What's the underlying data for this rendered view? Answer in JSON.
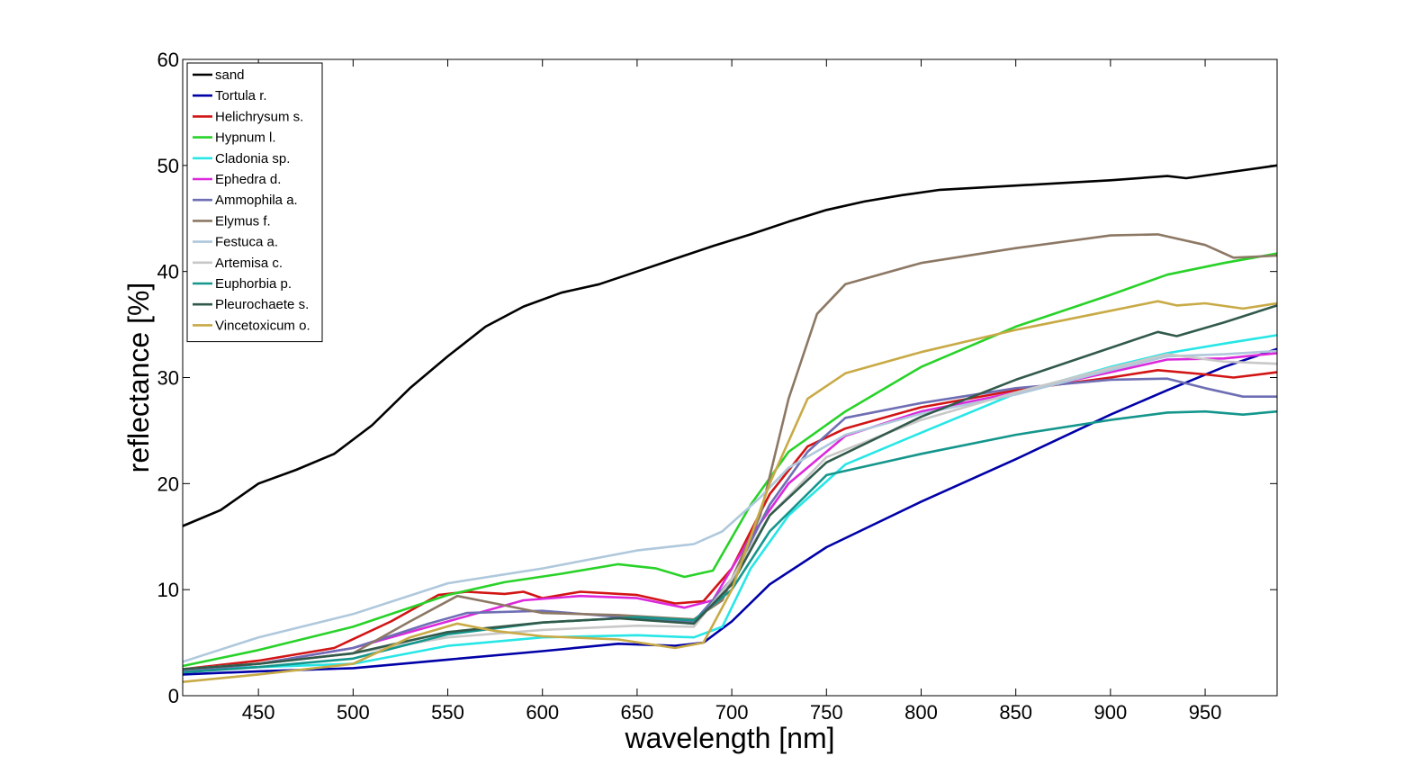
{
  "chart_data": {
    "type": "line",
    "title": "",
    "xlabel": "wavelength [nm]",
    "ylabel": "reflectance [%]",
    "xlim": [
      410,
      988
    ],
    "ylim": [
      0,
      60
    ],
    "xticks": [
      450,
      500,
      550,
      600,
      650,
      700,
      750,
      800,
      850,
      900,
      950
    ],
    "yticks": [
      0,
      10,
      20,
      30,
      40,
      50,
      60
    ],
    "grid": false,
    "legend_position": "top-left",
    "series": [
      {
        "name": "sand",
        "color": "#000000",
        "points": [
          [
            410,
            16
          ],
          [
            430,
            17.5
          ],
          [
            450,
            20
          ],
          [
            470,
            21.3
          ],
          [
            490,
            22.8
          ],
          [
            510,
            25.5
          ],
          [
            530,
            29
          ],
          [
            550,
            32
          ],
          [
            570,
            34.8
          ],
          [
            590,
            36.7
          ],
          [
            610,
            38
          ],
          [
            630,
            38.8
          ],
          [
            650,
            40
          ],
          [
            670,
            41.2
          ],
          [
            690,
            42.4
          ],
          [
            710,
            43.5
          ],
          [
            730,
            44.7
          ],
          [
            750,
            45.8
          ],
          [
            770,
            46.6
          ],
          [
            790,
            47.2
          ],
          [
            810,
            47.7
          ],
          [
            850,
            48.1
          ],
          [
            900,
            48.6
          ],
          [
            930,
            49
          ],
          [
            940,
            48.8
          ],
          [
            960,
            49.3
          ],
          [
            988,
            50
          ]
        ]
      },
      {
        "name": "Tortula r.",
        "color": "#0000a8",
        "points": [
          [
            410,
            2
          ],
          [
            450,
            2.3
          ],
          [
            500,
            2.6
          ],
          [
            550,
            3.4
          ],
          [
            600,
            4.2
          ],
          [
            640,
            4.9
          ],
          [
            670,
            4.7
          ],
          [
            685,
            5
          ],
          [
            700,
            7
          ],
          [
            720,
            10.5
          ],
          [
            750,
            14
          ],
          [
            800,
            18.3
          ],
          [
            850,
            22.3
          ],
          [
            900,
            26.5
          ],
          [
            930,
            28.8
          ],
          [
            960,
            31
          ],
          [
            988,
            32.7
          ]
        ]
      },
      {
        "name": "Helichrysum s.",
        "color": "#d21414",
        "points": [
          [
            410,
            2.5
          ],
          [
            450,
            3.3
          ],
          [
            490,
            4.5
          ],
          [
            520,
            7
          ],
          [
            545,
            9.5
          ],
          [
            560,
            9.8
          ],
          [
            580,
            9.6
          ],
          [
            590,
            9.8
          ],
          [
            600,
            9.2
          ],
          [
            620,
            9.8
          ],
          [
            650,
            9.5
          ],
          [
            670,
            8.7
          ],
          [
            685,
            8.9
          ],
          [
            700,
            12
          ],
          [
            720,
            19
          ],
          [
            740,
            23.5
          ],
          [
            760,
            25.2
          ],
          [
            800,
            27.2
          ],
          [
            850,
            28.8
          ],
          [
            900,
            30
          ],
          [
            925,
            30.7
          ],
          [
            950,
            30.3
          ],
          [
            965,
            30
          ],
          [
            988,
            30.5
          ]
        ]
      },
      {
        "name": "Hypnum l.",
        "color": "#28d228",
        "points": [
          [
            410,
            2.8
          ],
          [
            450,
            4.3
          ],
          [
            500,
            6.5
          ],
          [
            550,
            9.5
          ],
          [
            580,
            10.7
          ],
          [
            610,
            11.5
          ],
          [
            640,
            12.4
          ],
          [
            660,
            12
          ],
          [
            675,
            11.2
          ],
          [
            690,
            11.8
          ],
          [
            710,
            18
          ],
          [
            730,
            23
          ],
          [
            760,
            26.8
          ],
          [
            800,
            31
          ],
          [
            850,
            34.8
          ],
          [
            900,
            37.8
          ],
          [
            930,
            39.7
          ],
          [
            960,
            40.8
          ],
          [
            988,
            41.7
          ]
        ]
      },
      {
        "name": "Cladonia sp.",
        "color": "#28e6e6",
        "points": [
          [
            410,
            2.5
          ],
          [
            450,
            2.7
          ],
          [
            500,
            3
          ],
          [
            550,
            4.7
          ],
          [
            600,
            5.5
          ],
          [
            650,
            5.7
          ],
          [
            680,
            5.5
          ],
          [
            695,
            6.5
          ],
          [
            710,
            12
          ],
          [
            730,
            17
          ],
          [
            760,
            21.8
          ],
          [
            800,
            24.8
          ],
          [
            850,
            28.5
          ],
          [
            900,
            31
          ],
          [
            930,
            32.3
          ],
          [
            960,
            33.2
          ],
          [
            988,
            34
          ]
        ]
      },
      {
        "name": "Ephedra d.",
        "color": "#dc28dc",
        "points": [
          [
            410,
            2.3
          ],
          [
            450,
            3
          ],
          [
            500,
            4.5
          ],
          [
            550,
            7
          ],
          [
            590,
            9
          ],
          [
            620,
            9.4
          ],
          [
            650,
            9.2
          ],
          [
            675,
            8.3
          ],
          [
            690,
            9
          ],
          [
            710,
            15
          ],
          [
            730,
            20
          ],
          [
            760,
            24.5
          ],
          [
            800,
            26.8
          ],
          [
            850,
            28.6
          ],
          [
            900,
            30.5
          ],
          [
            930,
            31.7
          ],
          [
            960,
            31.8
          ],
          [
            988,
            32.3
          ]
        ]
      },
      {
        "name": "Ammophila a.",
        "color": "#6e6eb4",
        "points": [
          [
            410,
            2.3
          ],
          [
            450,
            3
          ],
          [
            500,
            4.5
          ],
          [
            540,
            6.8
          ],
          [
            560,
            7.8
          ],
          [
            600,
            8
          ],
          [
            650,
            7.3
          ],
          [
            680,
            7
          ],
          [
            700,
            11
          ],
          [
            720,
            18
          ],
          [
            740,
            23
          ],
          [
            760,
            26.2
          ],
          [
            800,
            27.6
          ],
          [
            850,
            29
          ],
          [
            900,
            29.8
          ],
          [
            930,
            29.9
          ],
          [
            950,
            29
          ],
          [
            970,
            28.2
          ],
          [
            988,
            28.2
          ]
        ]
      },
      {
        "name": "Elymus f.",
        "color": "#8c7864",
        "points": [
          [
            410,
            2.5
          ],
          [
            450,
            3
          ],
          [
            500,
            4
          ],
          [
            530,
            7
          ],
          [
            555,
            9.4
          ],
          [
            575,
            8.7
          ],
          [
            600,
            7.8
          ],
          [
            640,
            7.6
          ],
          [
            680,
            7.2
          ],
          [
            695,
            9
          ],
          [
            715,
            17
          ],
          [
            730,
            28
          ],
          [
            745,
            36
          ],
          [
            760,
            38.8
          ],
          [
            800,
            40.8
          ],
          [
            850,
            42.2
          ],
          [
            900,
            43.4
          ],
          [
            925,
            43.5
          ],
          [
            950,
            42.5
          ],
          [
            965,
            41.3
          ],
          [
            988,
            41.5
          ]
        ]
      },
      {
        "name": "Festuca a.",
        "color": "#afc8dc",
        "points": [
          [
            410,
            3.2
          ],
          [
            450,
            5.5
          ],
          [
            500,
            7.7
          ],
          [
            550,
            10.6
          ],
          [
            600,
            12
          ],
          [
            650,
            13.7
          ],
          [
            680,
            14.3
          ],
          [
            695,
            15.5
          ],
          [
            715,
            18.7
          ],
          [
            730,
            21.5
          ],
          [
            760,
            24.6
          ],
          [
            800,
            26.6
          ],
          [
            850,
            28.4
          ],
          [
            900,
            30.7
          ],
          [
            930,
            32
          ],
          [
            960,
            32.2
          ],
          [
            988,
            32.5
          ]
        ]
      },
      {
        "name": "Artemisa c.",
        "color": "#c8c8c8",
        "points": [
          [
            410,
            2.5
          ],
          [
            450,
            3
          ],
          [
            500,
            4
          ],
          [
            550,
            5.5
          ],
          [
            600,
            6.2
          ],
          [
            650,
            6.6
          ],
          [
            680,
            6.5
          ],
          [
            700,
            11
          ],
          [
            720,
            17
          ],
          [
            750,
            22.5
          ],
          [
            800,
            26
          ],
          [
            850,
            28.6
          ],
          [
            900,
            30.9
          ],
          [
            930,
            32.2
          ],
          [
            960,
            31.5
          ],
          [
            988,
            31.3
          ]
        ]
      },
      {
        "name": "Euphorbia p.",
        "color": "#14968c",
        "points": [
          [
            410,
            2.2
          ],
          [
            450,
            2.7
          ],
          [
            500,
            3.5
          ],
          [
            550,
            5.8
          ],
          [
            600,
            6.9
          ],
          [
            650,
            7.4
          ],
          [
            680,
            7.1
          ],
          [
            700,
            10
          ],
          [
            720,
            15.5
          ],
          [
            750,
            20.8
          ],
          [
            800,
            22.8
          ],
          [
            850,
            24.6
          ],
          [
            900,
            26
          ],
          [
            930,
            26.7
          ],
          [
            950,
            26.8
          ],
          [
            970,
            26.5
          ],
          [
            988,
            26.8
          ]
        ]
      },
      {
        "name": "Pleurochaete s.",
        "color": "#325a4b",
        "points": [
          [
            410,
            2.5
          ],
          [
            450,
            3
          ],
          [
            500,
            4
          ],
          [
            550,
            6
          ],
          [
            600,
            6.9
          ],
          [
            640,
            7.3
          ],
          [
            680,
            6.8
          ],
          [
            700,
            10.5
          ],
          [
            720,
            17
          ],
          [
            750,
            22
          ],
          [
            800,
            26.3
          ],
          [
            850,
            29.8
          ],
          [
            900,
            32.8
          ],
          [
            925,
            34.3
          ],
          [
            935,
            33.9
          ],
          [
            960,
            35.2
          ],
          [
            988,
            36.8
          ]
        ]
      },
      {
        "name": "Vincetoxicum o.",
        "color": "#c8aa46",
        "points": [
          [
            410,
            1.3
          ],
          [
            450,
            2
          ],
          [
            500,
            3
          ],
          [
            530,
            5.5
          ],
          [
            555,
            6.8
          ],
          [
            575,
            6.1
          ],
          [
            600,
            5.6
          ],
          [
            640,
            5.3
          ],
          [
            670,
            4.5
          ],
          [
            685,
            5
          ],
          [
            700,
            10
          ],
          [
            720,
            20
          ],
          [
            740,
            28
          ],
          [
            760,
            30.4
          ],
          [
            800,
            32.4
          ],
          [
            850,
            34.5
          ],
          [
            900,
            36.3
          ],
          [
            925,
            37.2
          ],
          [
            935,
            36.8
          ],
          [
            950,
            37
          ],
          [
            970,
            36.5
          ],
          [
            988,
            37
          ]
        ]
      }
    ]
  }
}
